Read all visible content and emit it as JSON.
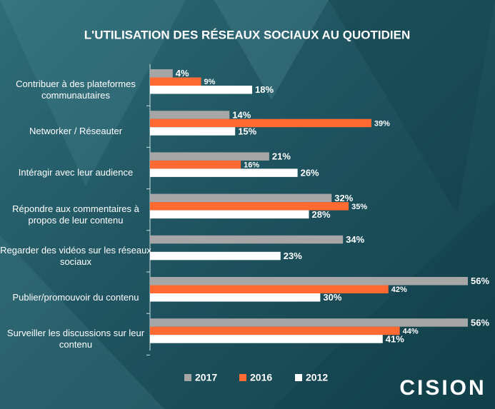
{
  "chart_data": {
    "type": "bar",
    "orientation": "horizontal",
    "title": "L'UTILISATION DES RÉSEAUX SOCIAUX AU QUOTIDIEN",
    "categories": [
      "Contribuer à des plateformes communautaires",
      "Networker / Réseauter",
      "Intéragir avec leur audience",
      "Répondre aux commentaires à propos de leur contenu",
      "Regarder des vidéos sur les réseaux sociaux",
      "Publier/promouvoir du contenu",
      "Surveiller les discussions sur leur contenu"
    ],
    "series": [
      {
        "name": "2017",
        "color": "#a6a6a6",
        "values": [
          4,
          14,
          21,
          32,
          34,
          56,
          56
        ],
        "value_labels": [
          "4%",
          "14%",
          "21%",
          "32%",
          "34%",
          "56%",
          "56%"
        ]
      },
      {
        "name": "2016",
        "color": "#ff6a33",
        "values": [
          9,
          39,
          16,
          35,
          null,
          42,
          44
        ],
        "value_labels": [
          "9%",
          "39%",
          "16%",
          "35%",
          null,
          "42%",
          "44%"
        ]
      },
      {
        "name": "2012",
        "color": "#ffffff",
        "values": [
          18,
          15,
          26,
          28,
          23,
          30,
          41
        ],
        "value_labels": [
          "18%",
          "15%",
          "26%",
          "28%",
          "23%",
          "30%",
          "41%"
        ]
      }
    ],
    "legend": "bottom",
    "logo": "CISION"
  }
}
